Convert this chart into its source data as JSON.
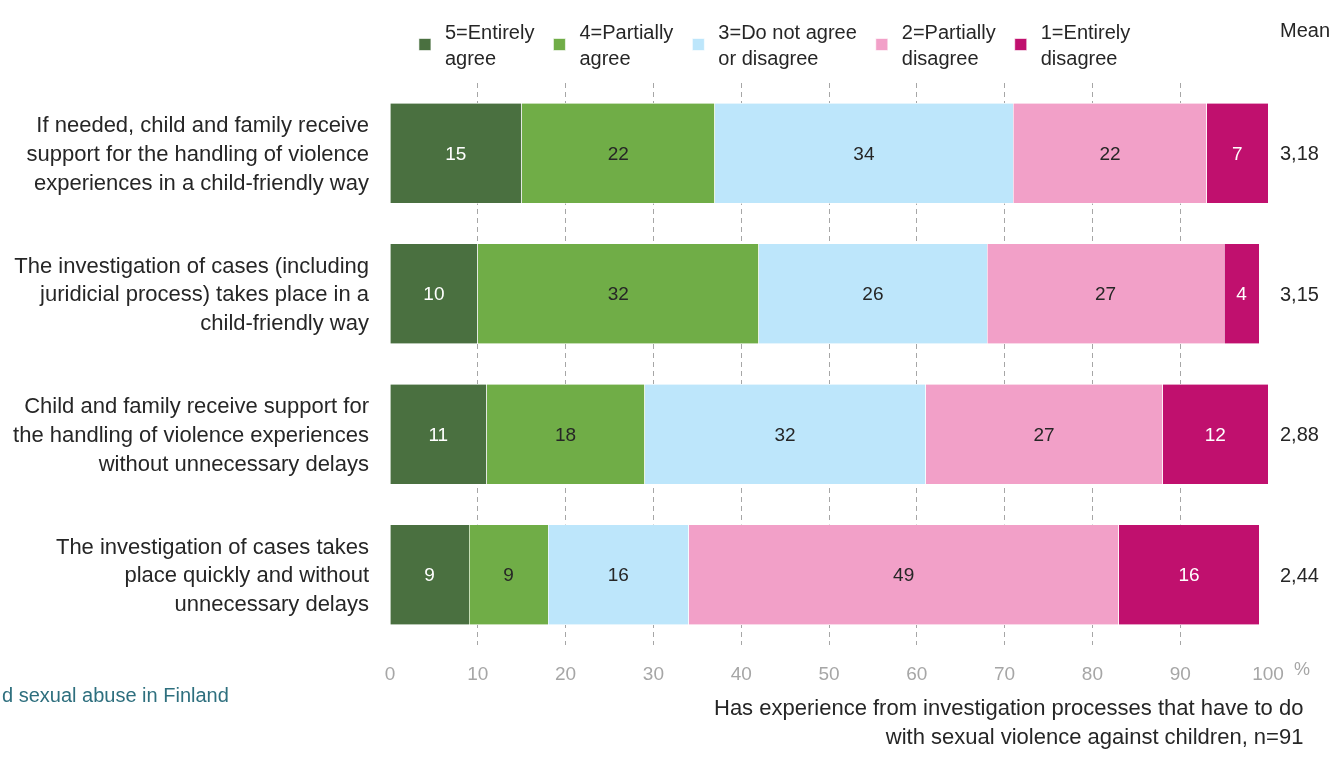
{
  "chart_data": {
    "type": "bar",
    "orientation": "horizontal",
    "stacked": true,
    "categories": [
      "If needed, child and family receive support for the handling of violence experiences in a child-friendly way",
      "The investigation of cases (including juridicial process) takes place in a child-friendly way",
      "Child and family receive support for the handling of violence experiences without unnecessary delays",
      "The investigation of cases takes place quickly and without unnecessary delays"
    ],
    "series": [
      {
        "name": "5=Entirely agree",
        "color": "#4a7040",
        "values": [
          15,
          10,
          11,
          9
        ]
      },
      {
        "name": "4=Partially agree",
        "color": "#70ad47",
        "values": [
          22,
          32,
          18,
          9
        ]
      },
      {
        "name": "3=Do not agree or disagree",
        "color": "#bde6fb",
        "values": [
          34,
          26,
          32,
          16
        ]
      },
      {
        "name": "2=Partially disagree",
        "color": "#f2a0c8",
        "values": [
          22,
          27,
          27,
          49
        ]
      },
      {
        "name": "1=Entirely disagree",
        "color": "#c0106e",
        "values": [
          7,
          4,
          12,
          16
        ]
      }
    ],
    "xlim": [
      0,
      100
    ],
    "xticks": [
      0,
      10,
      20,
      30,
      40,
      50,
      60,
      70,
      80,
      90,
      100
    ],
    "xlabel": "%",
    "data_labels": true,
    "grid": "x",
    "legend": "top",
    "annotations": [
      "Mean",
      "3,18",
      "3,15",
      "2,88",
      "2,44",
      "d sexual abuse in Finland",
      "Has experience from investigation processes that have to do with sexual violence against children, n=91"
    ]
  }
}
